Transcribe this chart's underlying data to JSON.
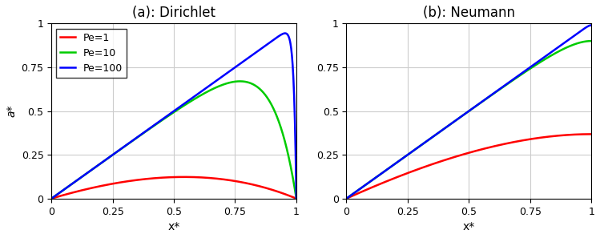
{
  "title_a": "(a): Dirichlet",
  "title_b": "(b): Neumann",
  "xlabel": "x*",
  "ylabel": "a*",
  "Pe_values": [
    1,
    10,
    100
  ],
  "colors": [
    "#FF0000",
    "#00CC00",
    "#0000FF"
  ],
  "labels": [
    "Pe=1",
    "Pe=10",
    "Pe=100"
  ],
  "xlim": [
    0,
    1
  ],
  "ylim": [
    0,
    1
  ],
  "xticks": [
    0,
    0.25,
    0.5,
    0.75,
    1
  ],
  "yticks": [
    0,
    0.25,
    0.5,
    0.75,
    1
  ],
  "grid_color": "#CCCCCC",
  "linewidth": 1.8,
  "figsize": [
    7.49,
    2.97
  ],
  "dpi": 100
}
